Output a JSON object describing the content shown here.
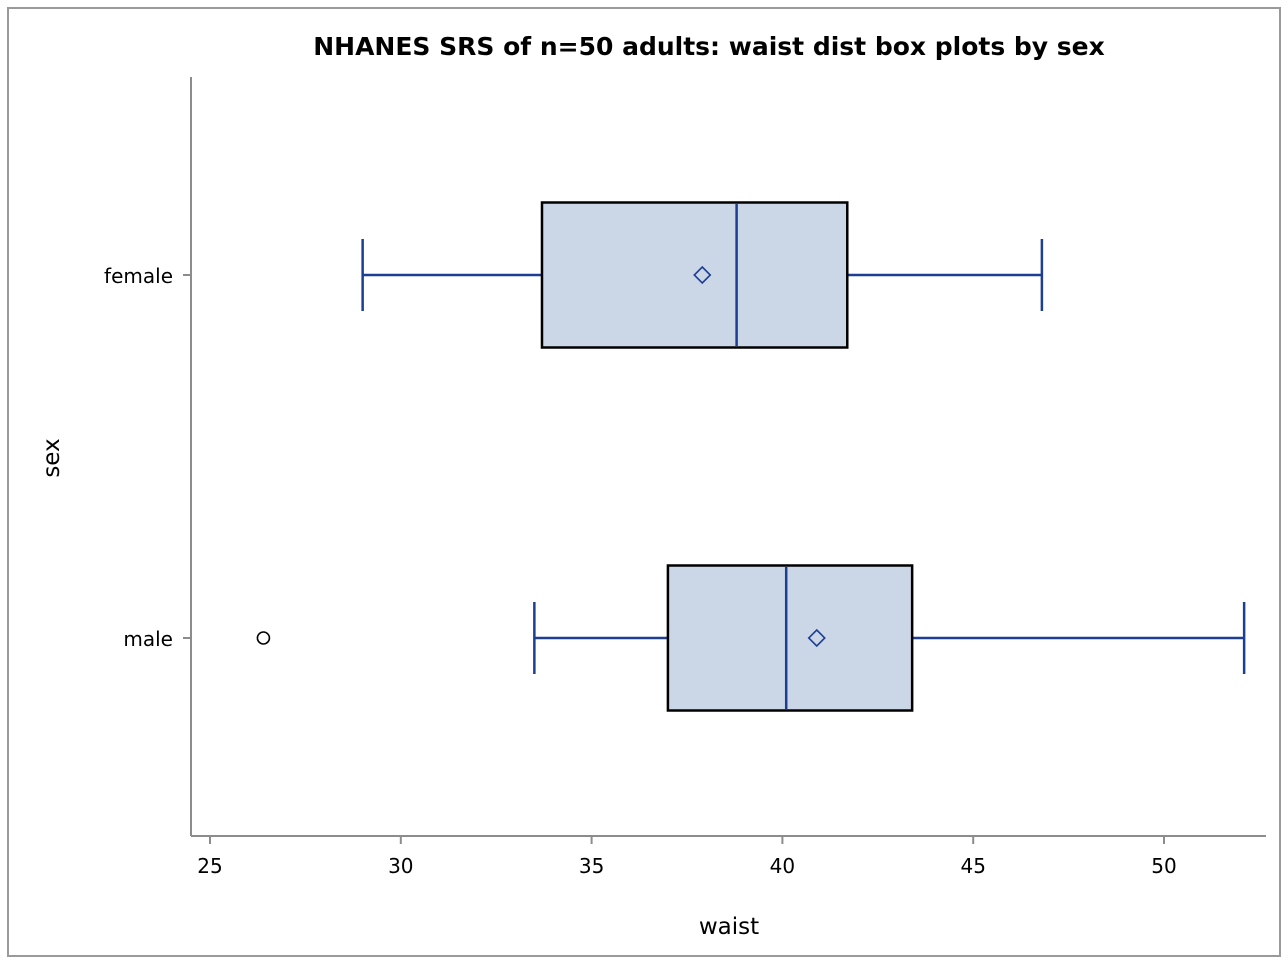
{
  "chart_data": {
    "type": "boxplot",
    "title": "NHANES SRS of n=50 adults: waist dist box plots by sex",
    "xlabel": "waist",
    "ylabel": "sex",
    "xlim": [
      24.5,
      52.5
    ],
    "xticks": [
      25,
      30,
      35,
      40,
      45,
      50
    ],
    "categories": [
      "female",
      "male"
    ],
    "grid": false,
    "series": [
      {
        "category": "female",
        "whisker_low": 29.0,
        "q1": 33.7,
        "median": 38.8,
        "q3": 41.7,
        "whisker_high": 46.8,
        "mean": 37.9,
        "outliers": []
      },
      {
        "category": "male",
        "whisker_low": 33.5,
        "q1": 37.0,
        "median": 40.1,
        "q3": 43.4,
        "whisker_high": 52.1,
        "mean": 40.9,
        "outliers": [
          26.4
        ]
      }
    ],
    "colors": {
      "box_fill": "#cbd6e6",
      "box_border": "#000000",
      "whisker": "#1c3f94",
      "median": "#1c3f94",
      "mean_marker": "#1c3f94",
      "outlier": "#000000",
      "axis": "#8c8c8c"
    }
  }
}
